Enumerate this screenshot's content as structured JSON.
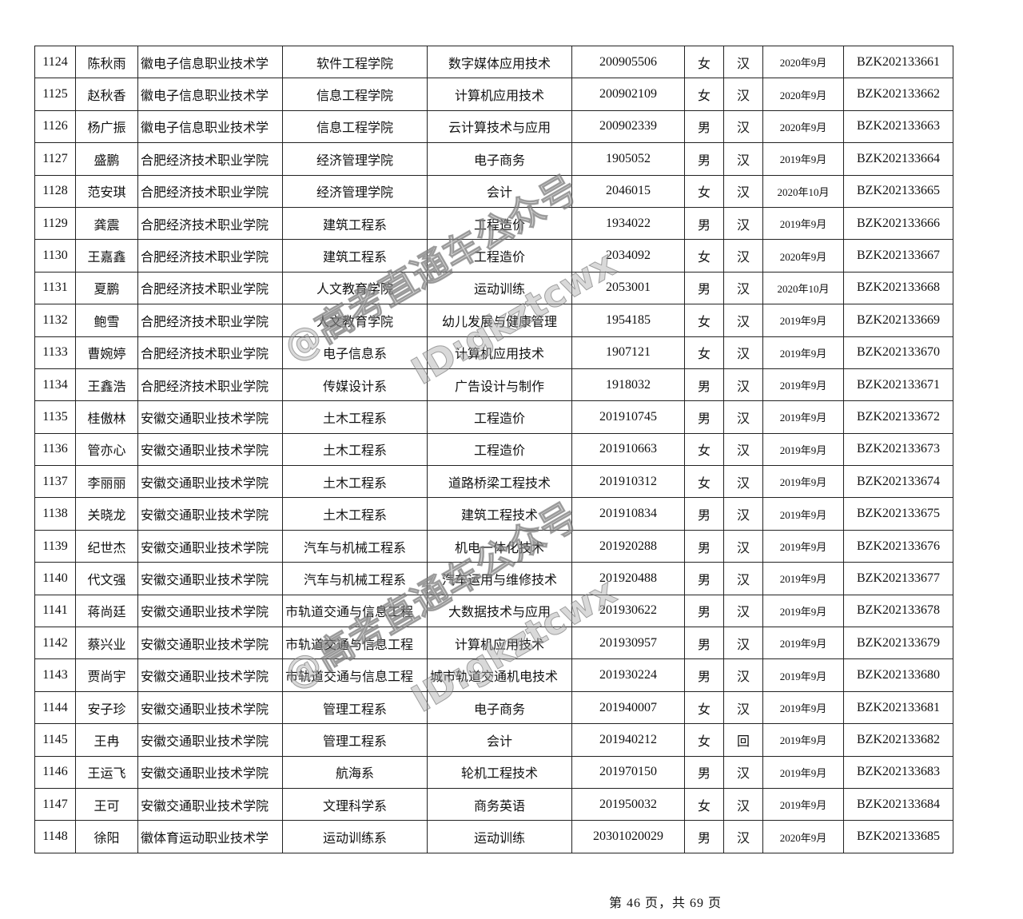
{
  "table": {
    "rows": [
      [
        "1124",
        "陈秋雨",
        "徽电子信息职业技术学",
        "软件工程学院",
        "数字媒体应用技术",
        "200905506",
        "女",
        "汉",
        "2020年9月",
        "BZK202133661"
      ],
      [
        "1125",
        "赵秋香",
        "徽电子信息职业技术学",
        "信息工程学院",
        "计算机应用技术",
        "200902109",
        "女",
        "汉",
        "2020年9月",
        "BZK202133662"
      ],
      [
        "1126",
        "杨广振",
        "徽电子信息职业技术学",
        "信息工程学院",
        "云计算技术与应用",
        "200902339",
        "男",
        "汉",
        "2020年9月",
        "BZK202133663"
      ],
      [
        "1127",
        "盛鹏",
        "合肥经济技术职业学院",
        "经济管理学院",
        "电子商务",
        "1905052",
        "男",
        "汉",
        "2019年9月",
        "BZK202133664"
      ],
      [
        "1128",
        "范安琪",
        "合肥经济技术职业学院",
        "经济管理学院",
        "会计",
        "2046015",
        "女",
        "汉",
        "2020年10月",
        "BZK202133665"
      ],
      [
        "1129",
        "龚震",
        "合肥经济技术职业学院",
        "建筑工程系",
        "工程造价",
        "1934022",
        "男",
        "汉",
        "2019年9月",
        "BZK202133666"
      ],
      [
        "1130",
        "王嘉鑫",
        "合肥经济技术职业学院",
        "建筑工程系",
        "工程造价",
        "2034092",
        "女",
        "汉",
        "2020年9月",
        "BZK202133667"
      ],
      [
        "1131",
        "夏鹏",
        "合肥经济技术职业学院",
        "人文教育学院",
        "运动训练",
        "2053001",
        "男",
        "汉",
        "2020年10月",
        "BZK202133668"
      ],
      [
        "1132",
        "鲍雪",
        "合肥经济技术职业学院",
        "人文教育学院",
        "幼儿发展与健康管理",
        "1954185",
        "女",
        "汉",
        "2019年9月",
        "BZK202133669"
      ],
      [
        "1133",
        "曹婉婷",
        "合肥经济技术职业学院",
        "电子信息系",
        "计算机应用技术",
        "1907121",
        "女",
        "汉",
        "2019年9月",
        "BZK202133670"
      ],
      [
        "1134",
        "王鑫浩",
        "合肥经济技术职业学院",
        "传媒设计系",
        "广告设计与制作",
        "1918032",
        "男",
        "汉",
        "2019年9月",
        "BZK202133671"
      ],
      [
        "1135",
        "桂傲林",
        "安徽交通职业技术学院",
        "土木工程系",
        "工程造价",
        "201910745",
        "男",
        "汉",
        "2019年9月",
        "BZK202133672"
      ],
      [
        "1136",
        "管亦心",
        "安徽交通职业技术学院",
        "土木工程系",
        "工程造价",
        "201910663",
        "女",
        "汉",
        "2019年9月",
        "BZK202133673"
      ],
      [
        "1137",
        "李丽丽",
        "安徽交通职业技术学院",
        "土木工程系",
        "道路桥梁工程技术",
        "201910312",
        "女",
        "汉",
        "2019年9月",
        "BZK202133674"
      ],
      [
        "1138",
        "关晓龙",
        "安徽交通职业技术学院",
        "土木工程系",
        "建筑工程技术",
        "201910834",
        "男",
        "汉",
        "2019年9月",
        "BZK202133675"
      ],
      [
        "1139",
        "纪世杰",
        "安徽交通职业技术学院",
        "汽车与机械工程系",
        "机电一体化技术",
        "201920288",
        "男",
        "汉",
        "2019年9月",
        "BZK202133676"
      ],
      [
        "1140",
        "代文强",
        "安徽交通职业技术学院",
        "汽车与机械工程系",
        "汽车运用与维修技术",
        "201920488",
        "男",
        "汉",
        "2019年9月",
        "BZK202133677"
      ],
      [
        "1141",
        "蒋尚廷",
        "安徽交通职业技术学院",
        "市轨道交通与信息工程",
        "大数据技术与应用",
        "201930622",
        "男",
        "汉",
        "2019年9月",
        "BZK202133678"
      ],
      [
        "1142",
        "蔡兴业",
        "安徽交通职业技术学院",
        "市轨道交通与信息工程",
        "计算机应用技术",
        "201930957",
        "男",
        "汉",
        "2019年9月",
        "BZK202133679"
      ],
      [
        "1143",
        "贾尚宇",
        "安徽交通职业技术学院",
        "市轨道交通与信息工程",
        "城市轨道交通机电技术",
        "201930224",
        "男",
        "汉",
        "2019年9月",
        "BZK202133680"
      ],
      [
        "1144",
        "安子珍",
        "安徽交通职业技术学院",
        "管理工程系",
        "电子商务",
        "201940007",
        "女",
        "汉",
        "2019年9月",
        "BZK202133681"
      ],
      [
        "1145",
        "王冉",
        "安徽交通职业技术学院",
        "管理工程系",
        "会计",
        "201940212",
        "女",
        "回",
        "2019年9月",
        "BZK202133682"
      ],
      [
        "1146",
        "王运飞",
        "安徽交通职业技术学院",
        "航海系",
        "轮机工程技术",
        "201970150",
        "男",
        "汉",
        "2019年9月",
        "BZK202133683"
      ],
      [
        "1147",
        "王可",
        "安徽交通职业技术学院",
        "文理科学系",
        "商务英语",
        "201950032",
        "女",
        "汉",
        "2019年9月",
        "BZK202133684"
      ],
      [
        "1148",
        "徐阳",
        "徽体育运动职业技术学",
        "运动训练系",
        "运动训练",
        "20301020029",
        "男",
        "汉",
        "2020年9月",
        "BZK202133685"
      ]
    ]
  },
  "footer": {
    "page": "第 46 页，共 69 页"
  },
  "watermark": {
    "line1": "@高考直通车公众号",
    "line2": "ID:gkztcwx"
  }
}
